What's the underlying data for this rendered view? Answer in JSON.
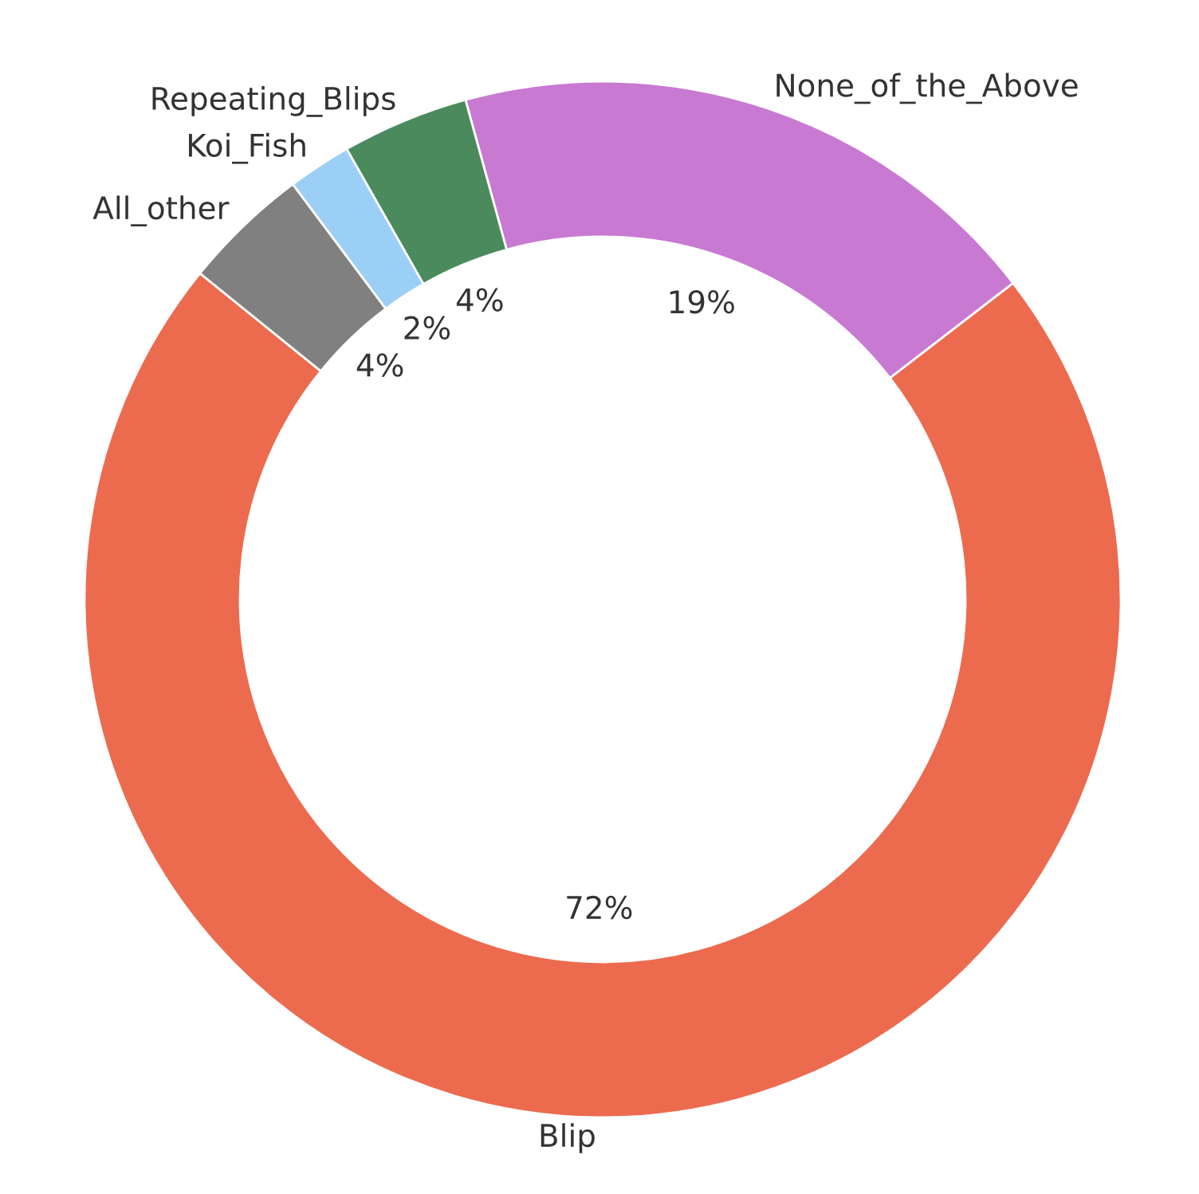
{
  "chart_data": {
    "type": "donut",
    "categories": [
      "Blip",
      "None_of_the_Above",
      "Repeating_Blips",
      "Koi_Fish",
      "All_other"
    ],
    "values": [
      72,
      19,
      4,
      2,
      4
    ],
    "value_labels": [
      "72%",
      "19%",
      "4%",
      "2%",
      "4%"
    ],
    "colors": [
      "#ec6b4f",
      "#c879d2",
      "#4a8a5c",
      "#9ccff5",
      "#808080"
    ]
  }
}
